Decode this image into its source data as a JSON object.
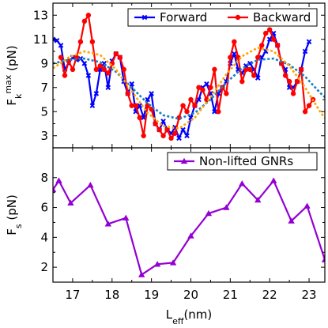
{
  "chart_data": [
    {
      "type": "line",
      "xlim": [
        16.5,
        23.4
      ],
      "ylim": [
        2.0,
        14.0
      ],
      "yticks": [
        "3",
        "5",
        "7",
        "9",
        "11",
        "13"
      ],
      "xticks": [
        "17",
        "18",
        "19",
        "20",
        "21",
        "22",
        "23"
      ],
      "ylabel_main": "F",
      "ylabel_sub": "k",
      "ylabel_sup": "max",
      "ylabel_unit": " (pN)",
      "legend_position": "top-right",
      "grid": false,
      "series": [
        {
          "name": "Forward",
          "color": "#0000ff",
          "marker": "x",
          "x": [
            16.5,
            16.6,
            16.7,
            16.8,
            16.9,
            17.0,
            17.1,
            17.2,
            17.3,
            17.4,
            17.5,
            17.6,
            17.7,
            17.8,
            17.9,
            18.0,
            18.1,
            18.2,
            18.3,
            18.4,
            18.5,
            18.6,
            18.7,
            18.8,
            18.9,
            19.0,
            19.1,
            19.2,
            19.3,
            19.4,
            19.5,
            19.6,
            19.7,
            19.8,
            19.9,
            20.0,
            20.1,
            20.2,
            20.3,
            20.4,
            20.5,
            20.6,
            20.7,
            20.8,
            20.9,
            21.0,
            21.1,
            21.2,
            21.3,
            21.4,
            21.5,
            21.6,
            21.7,
            21.8,
            21.9,
            22.0,
            22.1,
            22.2,
            22.3,
            22.4,
            22.5,
            22.6,
            22.7,
            22.8,
            22.9,
            23.0
          ],
          "y": [
            11.0,
            10.9,
            10.5,
            8.5,
            9.0,
            9.5,
            9.3,
            9.4,
            9.0,
            8.0,
            5.5,
            6.5,
            8.5,
            9.0,
            7.0,
            9.2,
            9.8,
            9.5,
            7.5,
            6.5,
            7.3,
            5.0,
            5.5,
            4.5,
            6.0,
            6.5,
            4.0,
            3.5,
            4.2,
            3.5,
            3.2,
            3.7,
            2.8,
            3.5,
            3.0,
            4.5,
            5.5,
            6.0,
            7.0,
            7.3,
            6.5,
            5.0,
            6.5,
            7.0,
            7.5,
            9.0,
            9.8,
            8.5,
            8.2,
            8.8,
            9.0,
            8.5,
            7.8,
            9.5,
            10.0,
            11.0,
            11.5,
            10.5,
            9.0,
            8.5,
            7.0,
            7.0,
            7.5,
            8.5,
            10.0,
            10.8
          ]
        },
        {
          "name": "Backward",
          "color": "#ff0000",
          "marker": "circle",
          "x": [
            16.7,
            16.8,
            16.9,
            17.0,
            17.1,
            17.2,
            17.3,
            17.4,
            17.5,
            17.6,
            17.7,
            17.8,
            17.9,
            18.0,
            18.1,
            18.2,
            18.3,
            18.4,
            18.5,
            18.6,
            18.7,
            18.8,
            18.9,
            19.0,
            19.1,
            19.2,
            19.3,
            19.4,
            19.5,
            19.6,
            19.7,
            19.8,
            19.9,
            20.0,
            20.1,
            20.2,
            20.3,
            20.4,
            20.5,
            20.6,
            20.7,
            20.8,
            20.9,
            21.0,
            21.1,
            21.2,
            21.3,
            21.4,
            21.5,
            21.6,
            21.7,
            21.8,
            21.9,
            22.0,
            22.1,
            22.2,
            22.3,
            22.4,
            22.5,
            22.6,
            22.7,
            22.8,
            22.9,
            23.0,
            23.1
          ],
          "y": [
            9.5,
            8.0,
            9.2,
            8.5,
            9.5,
            10.8,
            12.5,
            13.0,
            10.8,
            8.5,
            8.8,
            8.5,
            8.2,
            9.0,
            9.8,
            9.5,
            8.5,
            6.5,
            5.5,
            5.5,
            4.5,
            3.0,
            5.5,
            5.2,
            4.0,
            3.5,
            3.0,
            3.5,
            2.8,
            3.2,
            4.5,
            5.5,
            5.0,
            6.0,
            5.5,
            7.0,
            6.8,
            6.0,
            7.0,
            8.5,
            5.0,
            7.0,
            6.5,
            9.5,
            10.8,
            9.5,
            7.5,
            8.5,
            8.5,
            8.0,
            9.5,
            10.5,
            11.5,
            11.8,
            11.0,
            10.5,
            9.0,
            8.0,
            7.5,
            6.5,
            7.5,
            8.5,
            5.0,
            5.5,
            6.0
          ]
        },
        {
          "name": "",
          "color": "#1a7fbf",
          "style": "dotted-fit",
          "x": [
            16.5,
            16.9,
            17.3,
            17.7,
            18.1,
            18.5,
            18.9,
            19.3,
            19.7,
            20.1,
            20.5,
            20.9,
            21.3,
            21.7,
            22.1,
            22.5,
            22.9,
            23.3,
            23.4
          ],
          "y": [
            9.0,
            9.3,
            9.4,
            9.1,
            8.3,
            7.0,
            5.7,
            4.7,
            4.4,
            4.9,
            6.0,
            7.4,
            8.6,
            9.3,
            9.4,
            8.9,
            7.9,
            6.5,
            6.2
          ]
        },
        {
          "name": "",
          "color": "#ffa500",
          "style": "dotted-fit",
          "x": [
            16.5,
            16.9,
            17.3,
            17.7,
            18.1,
            18.5,
            18.9,
            19.3,
            19.7,
            20.1,
            20.5,
            20.9,
            21.3,
            21.7,
            22.1,
            22.5,
            22.9,
            23.3,
            23.4
          ],
          "y": [
            8.6,
            9.5,
            10.0,
            9.7,
            8.5,
            6.7,
            4.9,
            3.8,
            3.6,
            4.5,
            6.2,
            8.1,
            9.6,
            10.3,
            10.0,
            8.8,
            7.0,
            4.9,
            4.5
          ]
        }
      ]
    },
    {
      "type": "line",
      "xlim": [
        16.5,
        23.4
      ],
      "ylim": [
        1.0,
        10.0
      ],
      "yticks": [
        "2",
        "4",
        "6",
        "8"
      ],
      "xticks": [
        "17",
        "18",
        "19",
        "20",
        "21",
        "22",
        "23"
      ],
      "ylabel_main": "F",
      "ylabel_sub": "s",
      "ylabel_unit": " (pN)",
      "xlabel_main": "L",
      "xlabel_sub": "eff",
      "xlabel_unit": "(nm)",
      "legend_position": "top-right",
      "grid": false,
      "series": [
        {
          "name": "Non-lifted GNRs",
          "color": "#9400d3",
          "marker": "triangle",
          "x": [
            16.5,
            16.65,
            16.95,
            17.45,
            17.9,
            18.35,
            18.75,
            19.15,
            19.55,
            20.0,
            20.45,
            20.9,
            21.3,
            21.7,
            22.1,
            22.55,
            22.95,
            23.4
          ],
          "y": [
            7.2,
            7.8,
            6.3,
            7.5,
            4.9,
            5.3,
            1.5,
            2.2,
            2.3,
            4.1,
            5.6,
            6.0,
            7.6,
            6.5,
            7.8,
            5.1,
            6.1,
            2.5
          ]
        }
      ]
    }
  ]
}
